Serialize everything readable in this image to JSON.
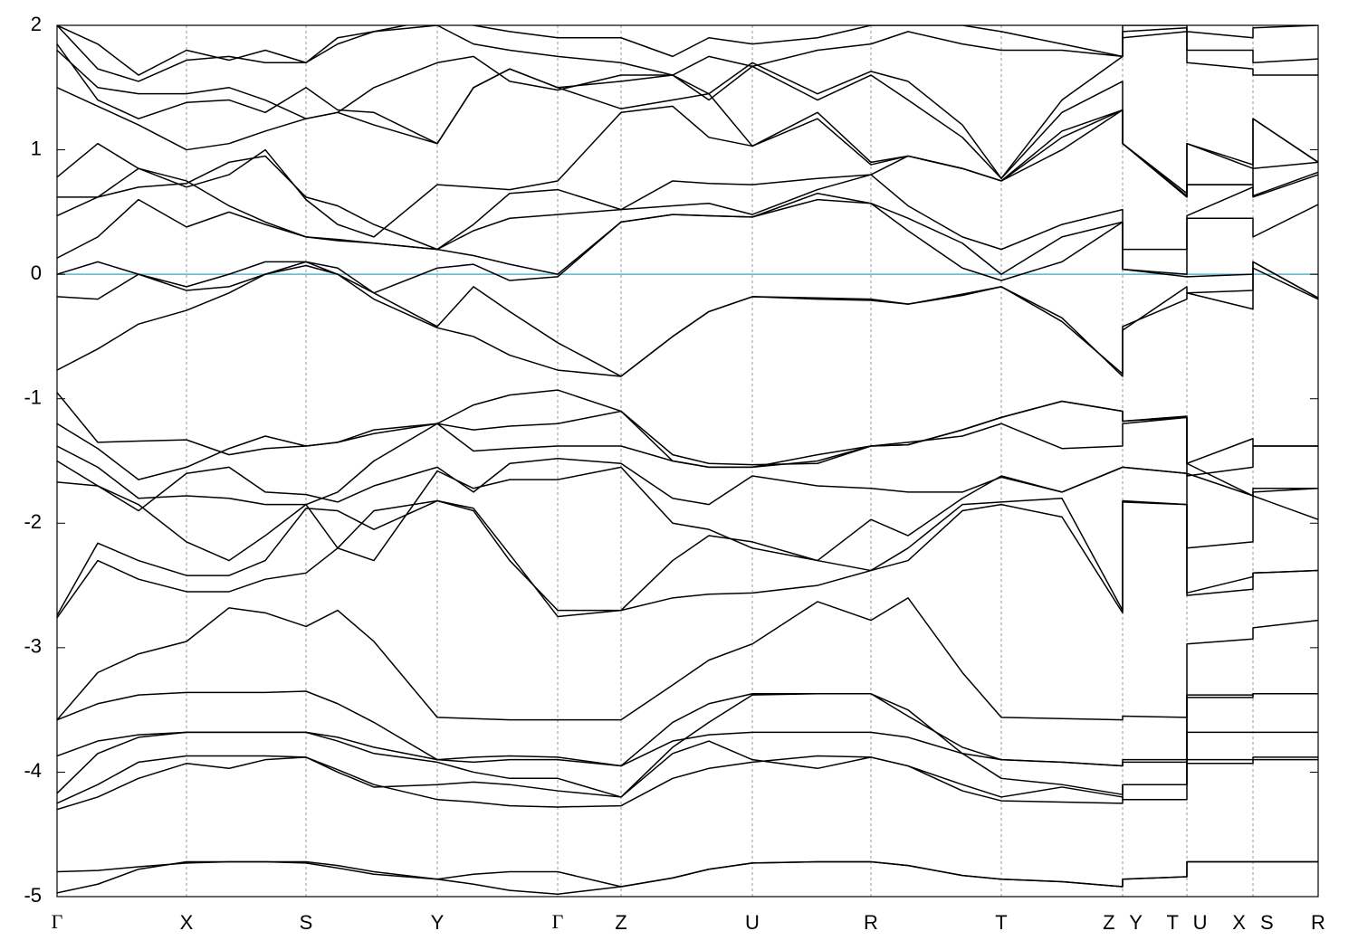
{
  "chart_data": {
    "type": "line",
    "color": "#000000",
    "fermi": {
      "value": 0,
      "color": "#5fb3c9"
    },
    "xlim": [
      0,
      13.93
    ],
    "ylim": [
      -5,
      2
    ],
    "yticks": [
      -5,
      -4,
      -3,
      -2,
      -1,
      0,
      1,
      2
    ],
    "xticks": [
      {
        "value": 0,
        "label": "Γ"
      },
      {
        "value": 1.43,
        "label": "X"
      },
      {
        "value": 2.75,
        "label": "S"
      },
      {
        "value": 4.2,
        "label": "Y"
      },
      {
        "value": 5.53,
        "label": "Γ"
      },
      {
        "value": 6.23,
        "label": "Z"
      },
      {
        "value": 7.68,
        "label": "U"
      },
      {
        "value": 8.99,
        "label": "R"
      },
      {
        "value": 10.43,
        "label": "T"
      },
      {
        "value": 11.77,
        "label": "Z Y"
      },
      {
        "value": 12.48,
        "label": "T U"
      },
      {
        "value": 13.21,
        "label": "X S"
      },
      {
        "value": 13.93,
        "label": "R"
      }
    ],
    "x": [
      0,
      0.45,
      0.9,
      1.43,
      1.9,
      2.3,
      2.75,
      3.1,
      3.5,
      4.2,
      4.6,
      5.0,
      5.53,
      6.23,
      6.8,
      7.2,
      7.68,
      8.4,
      8.99,
      9.4,
      10.0,
      10.43,
      11.1,
      11.77,
      11.77,
      12.48,
      12.48,
      13.21,
      13.21,
      13.93
    ],
    "series": [
      {
        "values": [
          -4.97,
          -4.9,
          -4.78,
          -4.72,
          -4.72,
          -4.72,
          -4.72,
          -4.75,
          -4.8,
          -4.86,
          -4.82,
          -4.8,
          -4.8,
          -4.92,
          -4.85,
          -4.78,
          -4.73,
          -4.72,
          -4.72,
          -4.75,
          -4.83,
          -4.86,
          -4.88,
          -4.92,
          -4.86,
          -4.84,
          -4.72,
          -4.72,
          -4.72,
          -4.72
        ]
      },
      {
        "values": [
          -4.8,
          -4.79,
          -4.76,
          -4.73,
          -4.72,
          -4.72,
          -4.73,
          -4.77,
          -4.82,
          -4.86,
          -4.9,
          -4.95,
          -4.98,
          -4.92,
          -4.85,
          -4.78,
          -4.73,
          -4.72,
          -4.72,
          -4.75,
          -4.83,
          -4.86,
          -4.88,
          -4.92,
          -4.86,
          -4.84,
          -4.72,
          -4.72,
          -4.72,
          -4.72
        ]
      },
      {
        "values": [
          -4.3,
          -4.2,
          -4.05,
          -3.93,
          -3.97,
          -3.9,
          -3.88,
          -3.98,
          -4.1,
          -4.22,
          -4.24,
          -4.27,
          -4.28,
          -4.27,
          -4.05,
          -3.97,
          -3.92,
          -3.87,
          -3.88,
          -3.95,
          -4.15,
          -4.23,
          -4.24,
          -4.25,
          -4.1,
          -4.1,
          -3.93,
          -3.93,
          -3.9,
          -3.9
        ]
      },
      {
        "values": [
          -4.25,
          -4.1,
          -3.92,
          -3.87,
          -3.87,
          -3.87,
          -3.88,
          -4.0,
          -4.12,
          -4.1,
          -4.08,
          -4.1,
          -4.15,
          -4.2,
          -3.85,
          -3.75,
          -3.9,
          -3.97,
          -3.88,
          -3.95,
          -4.1,
          -4.2,
          -4.12,
          -4.2,
          -4.22,
          -4.22,
          -3.9,
          -3.9,
          -3.88,
          -3.88
        ]
      },
      {
        "values": [
          -4.17,
          -3.85,
          -3.72,
          -3.68,
          -3.68,
          -3.68,
          -3.68,
          -3.72,
          -3.8,
          -3.9,
          -3.88,
          -3.87,
          -3.88,
          -3.95,
          -3.75,
          -3.7,
          -3.68,
          -3.68,
          -3.68,
          -3.72,
          -3.85,
          -3.9,
          -3.92,
          -3.95,
          -3.92,
          -3.92,
          -3.68,
          -3.68,
          -3.68,
          -3.68
        ]
      },
      {
        "values": [
          -3.87,
          -3.75,
          -3.7,
          -3.68,
          -3.68,
          -3.68,
          -3.68,
          -3.75,
          -3.85,
          -3.92,
          -4.0,
          -4.05,
          -4.05,
          -4.2,
          -3.8,
          -3.6,
          -3.38,
          -3.37,
          -3.37,
          -3.5,
          -3.85,
          -4.05,
          -4.1,
          -4.18,
          -4.1,
          -4.1,
          -3.38,
          -3.38,
          -3.37,
          -3.37
        ]
      },
      {
        "values": [
          -3.58,
          -3.45,
          -3.38,
          -3.36,
          -3.36,
          -3.36,
          -3.35,
          -3.45,
          -3.6,
          -3.9,
          -3.92,
          -3.9,
          -3.9,
          -3.95,
          -3.6,
          -3.45,
          -3.37,
          -3.37,
          -3.37,
          -3.55,
          -3.8,
          -3.9,
          -3.92,
          -3.95,
          -3.9,
          -3.9,
          -3.4,
          -3.4,
          -3.37,
          -3.37
        ]
      },
      {
        "values": [
          -3.58,
          -3.2,
          -3.05,
          -2.95,
          -2.68,
          -2.72,
          -2.83,
          -2.7,
          -2.95,
          -3.56,
          -3.57,
          -3.58,
          -3.58,
          -3.58,
          -3.3,
          -3.1,
          -2.97,
          -2.63,
          -2.78,
          -2.6,
          -3.2,
          -3.56,
          -3.57,
          -3.58,
          -3.55,
          -3.56,
          -2.97,
          -2.93,
          -2.84,
          -2.78
        ]
      },
      {
        "values": [
          -2.76,
          -2.3,
          -2.45,
          -2.55,
          -2.55,
          -2.45,
          -2.4,
          -2.2,
          -1.9,
          -1.82,
          -1.9,
          -2.3,
          -2.7,
          -2.7,
          -2.3,
          -2.1,
          -2.15,
          -2.3,
          -2.38,
          -2.3,
          -1.9,
          -1.85,
          -1.95,
          -2.72,
          -1.82,
          -1.85,
          -2.58,
          -2.53,
          -2.4,
          -2.38
        ]
      },
      {
        "values": [
          -2.74,
          -2.16,
          -2.3,
          -2.42,
          -2.42,
          -2.3,
          -1.88,
          -1.9,
          -2.05,
          -1.82,
          -1.88,
          -2.25,
          -2.75,
          -2.7,
          -2.6,
          -2.57,
          -2.56,
          -2.5,
          -2.38,
          -2.2,
          -1.85,
          -1.83,
          -1.8,
          -2.7,
          -1.83,
          -1.85,
          -2.56,
          -2.43,
          -2.4,
          -2.38
        ]
      },
      {
        "values": [
          -1.67,
          -1.7,
          -1.85,
          -2.15,
          -2.3,
          -2.1,
          -1.85,
          -2.2,
          -2.3,
          -1.58,
          -1.72,
          -1.65,
          -1.65,
          -1.55,
          -2.0,
          -2.05,
          -2.2,
          -2.3,
          -1.97,
          -2.1,
          -1.8,
          -1.62,
          -1.75,
          -1.55,
          -1.55,
          -1.6,
          -2.2,
          -2.15,
          -1.72,
          -1.72
        ]
      },
      {
        "values": [
          -1.5,
          -1.7,
          -1.9,
          -1.6,
          -1.55,
          -1.75,
          -1.77,
          -1.83,
          -1.7,
          -1.55,
          -1.75,
          -1.52,
          -1.48,
          -1.52,
          -1.8,
          -1.85,
          -1.62,
          -1.7,
          -1.72,
          -1.75,
          -1.75,
          -1.63,
          -1.75,
          -1.55,
          -1.55,
          -1.6,
          -1.6,
          -1.78,
          -1.75,
          -1.72
        ]
      },
      {
        "values": [
          -1.38,
          -1.55,
          -1.8,
          -1.78,
          -1.8,
          -1.85,
          -1.85,
          -1.75,
          -1.5,
          -1.2,
          -1.42,
          -1.4,
          -1.38,
          -1.38,
          -1.5,
          -1.55,
          -1.55,
          -1.45,
          -1.38,
          -1.35,
          -1.3,
          -1.2,
          -1.4,
          -1.38,
          -1.2,
          -1.15,
          -1.52,
          -1.32,
          -1.38,
          -1.38
        ]
      },
      {
        "values": [
          -1.2,
          -1.4,
          -1.65,
          -1.55,
          -1.4,
          -1.3,
          -1.38,
          -1.35,
          -1.28,
          -1.2,
          -1.25,
          -1.22,
          -1.2,
          -1.1,
          -1.5,
          -1.55,
          -1.55,
          -1.5,
          -1.38,
          -1.37,
          -1.25,
          -1.15,
          -1.02,
          -1.1,
          -1.18,
          -1.15,
          -1.62,
          -1.55,
          -1.38,
          -1.38
        ]
      },
      {
        "values": [
          -0.95,
          -1.35,
          -1.34,
          -1.33,
          -1.45,
          -1.4,
          -1.38,
          -1.35,
          -1.25,
          -1.2,
          -1.05,
          -0.97,
          -0.93,
          -1.1,
          -1.45,
          -1.52,
          -1.53,
          -1.52,
          -1.38,
          -1.37,
          -1.25,
          -1.15,
          -1.02,
          -1.1,
          -1.18,
          -1.14,
          -1.52,
          -1.78,
          -1.78,
          -1.97
        ]
      },
      {
        "values": [
          -0.77,
          -0.6,
          -0.4,
          -0.29,
          -0.15,
          0.0,
          0.07,
          0.0,
          -0.2,
          -0.43,
          -0.5,
          -0.65,
          -0.77,
          -0.82,
          -0.5,
          -0.3,
          -0.18,
          -0.19,
          -0.2,
          -0.24,
          -0.16,
          -0.1,
          -0.35,
          -0.82,
          -0.42,
          -0.2,
          -0.15,
          -0.28,
          0.1,
          -0.19
        ]
      },
      {
        "values": [
          -0.18,
          -0.2,
          0.0,
          -0.13,
          -0.1,
          0.0,
          0.1,
          0.05,
          -0.15,
          -0.42,
          -0.1,
          -0.3,
          -0.55,
          -0.82,
          -0.5,
          -0.3,
          -0.18,
          -0.2,
          -0.21,
          -0.24,
          -0.17,
          -0.1,
          -0.38,
          -0.8,
          -0.45,
          -0.1,
          -0.15,
          -0.13,
          0.05,
          -0.2
        ]
      },
      {
        "values": [
          0.0,
          0.1,
          0.0,
          -0.1,
          0.0,
          0.1,
          0.1,
          0.0,
          -0.15,
          0.05,
          0.08,
          -0.05,
          -0.02,
          0.42,
          0.48,
          0.47,
          0.46,
          0.6,
          0.57,
          0.35,
          0.05,
          -0.05,
          0.1,
          0.42,
          0.04,
          -0.02,
          -0.02,
          0.0,
          0.1,
          -0.19
        ]
      },
      {
        "values": [
          0.13,
          0.3,
          0.6,
          0.38,
          0.5,
          0.4,
          0.3,
          0.28,
          0.25,
          0.2,
          0.15,
          0.08,
          0.0,
          0.42,
          0.48,
          0.47,
          0.46,
          0.65,
          0.57,
          0.45,
          0.25,
          0.0,
          0.3,
          0.42,
          0.04,
          0.0,
          0.45,
          0.45,
          0.3,
          0.56
        ]
      },
      {
        "values": [
          0.47,
          0.62,
          0.85,
          0.75,
          0.55,
          0.42,
          0.3,
          0.27,
          0.25,
          0.2,
          0.35,
          0.45,
          0.48,
          0.52,
          0.55,
          0.57,
          0.48,
          0.68,
          0.8,
          0.55,
          0.3,
          0.2,
          0.4,
          0.52,
          0.2,
          0.2,
          0.47,
          0.7,
          0.62,
          0.8
        ]
      },
      {
        "values": [
          0.62,
          0.62,
          0.7,
          0.73,
          0.9,
          0.95,
          0.62,
          0.55,
          0.4,
          0.2,
          0.4,
          0.65,
          0.68,
          0.52,
          0.75,
          0.73,
          0.72,
          0.77,
          0.8,
          0.95,
          0.85,
          0.75,
          1.0,
          1.32,
          1.05,
          0.63,
          0.72,
          0.72,
          0.63,
          0.82
        ]
      },
      {
        "values": [
          0.78,
          1.05,
          0.85,
          0.7,
          0.8,
          1.0,
          0.6,
          0.4,
          0.3,
          0.72,
          0.7,
          0.68,
          0.75,
          1.3,
          1.35,
          1.1,
          1.03,
          1.25,
          0.88,
          0.95,
          0.85,
          0.75,
          1.1,
          1.32,
          1.05,
          0.62,
          0.72,
          0.72,
          0.85,
          0.9
        ]
      },
      {
        "values": [
          1.5,
          1.35,
          1.2,
          1.0,
          1.05,
          1.15,
          1.25,
          1.3,
          1.2,
          1.05,
          1.5,
          1.65,
          1.5,
          1.33,
          1.4,
          1.45,
          1.03,
          1.3,
          0.9,
          0.95,
          0.85,
          0.75,
          1.15,
          1.32,
          1.05,
          0.62,
          1.05,
          0.85,
          1.25,
          0.9
        ]
      },
      {
        "values": [
          1.85,
          1.4,
          1.25,
          1.38,
          1.4,
          1.3,
          1.5,
          1.32,
          1.3,
          1.05,
          1.5,
          1.65,
          1.5,
          1.55,
          1.6,
          1.4,
          1.67,
          1.4,
          1.6,
          1.4,
          1.1,
          0.77,
          1.3,
          1.55,
          1.05,
          0.65,
          1.05,
          0.88,
          1.25,
          0.9
        ]
      },
      {
        "values": [
          1.8,
          1.5,
          1.45,
          1.45,
          1.5,
          1.4,
          1.25,
          1.3,
          1.5,
          1.7,
          1.75,
          1.55,
          1.48,
          1.6,
          1.6,
          1.45,
          1.7,
          1.45,
          1.63,
          1.55,
          1.2,
          0.77,
          1.4,
          1.75,
          1.9,
          1.95,
          1.7,
          1.65,
          1.6,
          1.6
        ]
      },
      {
        "values": [
          2.0,
          1.65,
          1.55,
          1.72,
          1.75,
          1.7,
          1.7,
          1.9,
          1.95,
          2.0,
          1.85,
          1.8,
          1.75,
          1.7,
          1.6,
          1.75,
          1.67,
          1.8,
          1.85,
          1.95,
          1.85,
          1.8,
          1.8,
          1.75,
          1.95,
          1.98,
          1.8,
          1.8,
          1.7,
          1.73
        ]
      },
      {
        "values": [
          2.0,
          1.85,
          1.6,
          1.8,
          1.72,
          1.8,
          1.7,
          1.85,
          1.95,
          2.05,
          2.0,
          1.95,
          1.9,
          1.9,
          1.75,
          1.9,
          1.85,
          1.9,
          2.0,
          2.0,
          2.0,
          1.95,
          1.85,
          1.75,
          2.0,
          2.0,
          1.95,
          1.9,
          1.98,
          2.0
        ]
      }
    ]
  }
}
